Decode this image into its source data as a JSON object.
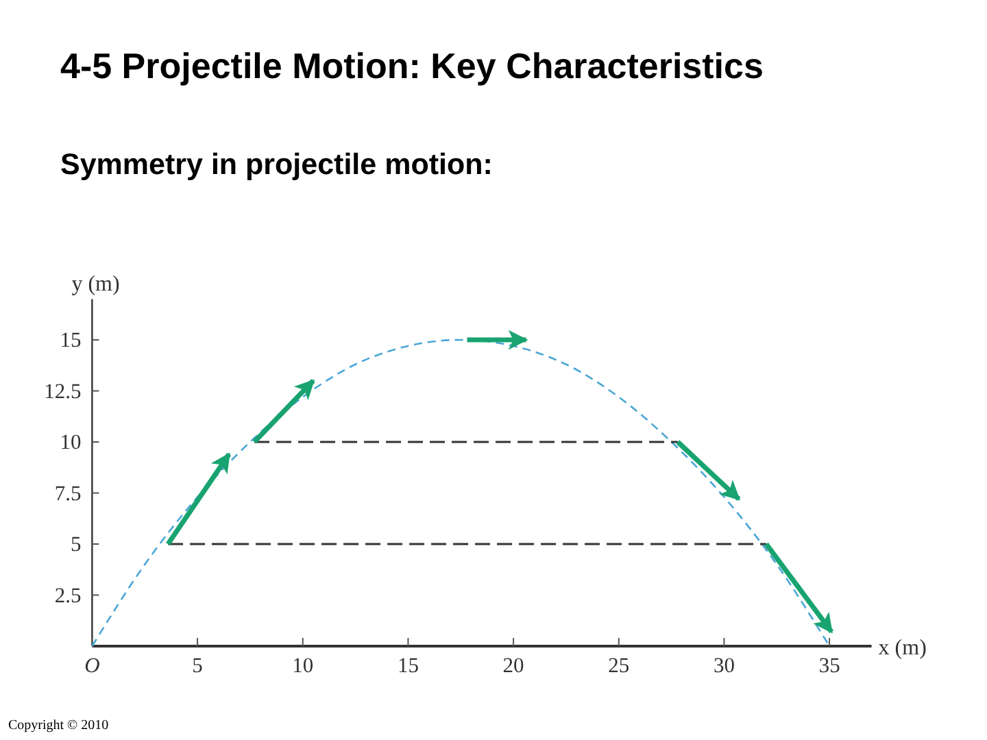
{
  "chart_data": {
    "type": "line",
    "title": "4-5 Projectile Motion: Key Characteristics",
    "subtitle": "Symmetry in projectile motion:",
    "xlabel": "x (m)",
    "ylabel": "y (m)",
    "xlim": [
      0,
      37
    ],
    "ylim": [
      0,
      17
    ],
    "xticks": [
      {
        "value": 0,
        "label": "O"
      },
      5,
      10,
      15,
      20,
      25,
      30,
      35
    ],
    "yticks": [
      2.5,
      5,
      7.5,
      10,
      12.5,
      15
    ],
    "series": [
      {
        "color": "#4aa6d6",
        "line_style": "dashed",
        "x": [
          0,
          2.5,
          5,
          7.5,
          10,
          12.5,
          15,
          17.5,
          20,
          22.5,
          25,
          27.5,
          30,
          32.5,
          35
        ],
        "values": [
          0,
          4,
          7.3,
          10,
          12.2,
          13.8,
          14.7,
          15,
          14.7,
          13.8,
          12.2,
          10,
          7.3,
          4,
          0
        ]
      },
      {
        "color": "#333333",
        "line_style": "dashed",
        "x": [
          3.6,
          32
        ],
        "values": [
          5,
          5
        ]
      },
      {
        "color": "#333333",
        "line_style": "dashed",
        "x": [
          7.7,
          27.8
        ],
        "values": [
          10,
          10
        ]
      },
      {
        "color": "#18a370",
        "line_style": "solid",
        "x": [
          3.6,
          6.5
        ],
        "values": [
          5,
          9.4
        ]
      },
      {
        "color": "#18a370",
        "line_style": "solid",
        "x": [
          7.7,
          10.5
        ],
        "values": [
          10,
          13
        ]
      },
      {
        "color": "#18a370",
        "line_style": "solid",
        "x": [
          17.8,
          20.6
        ],
        "values": [
          15,
          15
        ]
      },
      {
        "color": "#18a370",
        "line_style": "solid",
        "x": [
          27.8,
          30.7
        ],
        "values": [
          10,
          7.2
        ]
      },
      {
        "color": "#18a370",
        "line_style": "solid",
        "x": [
          32,
          35.1
        ],
        "values": [
          5,
          0.7
        ]
      }
    ],
    "annotations": [
      "Copyright © 2010"
    ]
  }
}
